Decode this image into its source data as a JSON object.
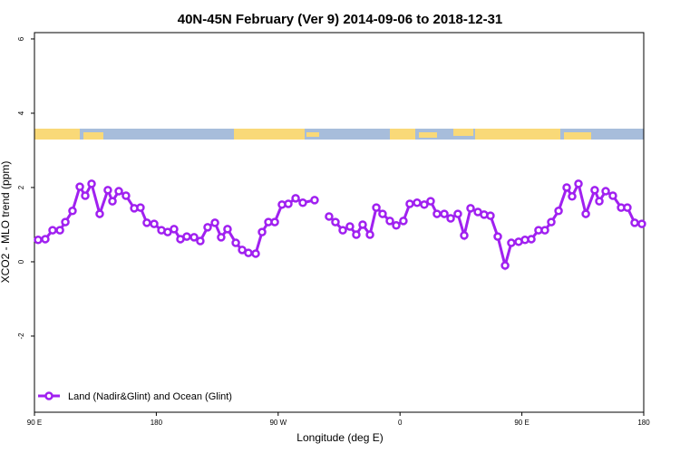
{
  "chart_data": {
    "type": "line",
    "title": "40N-45N February (Ver 9)   2014-09-06 to 2018-12-31",
    "xlabel": "Longitude (deg E)",
    "ylabel": "XCO2 - MLO trend (ppm)",
    "x": [
      92.7,
      98.0,
      103.4,
      108.8,
      112.8,
      118.1,
      123.5,
      127.5,
      132.2,
      138.2,
      144.2,
      147.6,
      152.3,
      157.6,
      163.7,
      168.3,
      173.0,
      178.4,
      183.8,
      188.4,
      193.1,
      197.8,
      202.5,
      207.9,
      212.5,
      217.9,
      223.3,
      227.9,
      232.6,
      238.7,
      243.4,
      248.0,
      253.4,
      258.1,
      262.8,
      267.5,
      272.8,
      277.5,
      282.9,
      288.2,
      296.9,
      302.5,
      307.6,
      312.3,
      317.7,
      323.0,
      327.7,
      332.4,
      337.8,
      342.5,
      347.1,
      352.5,
      357.2,
      362.5,
      367.2,
      372.6,
      377.9,
      382.6,
      387.3,
      392.7,
      397.4,
      402.7,
      407.4,
      412.1,
      417.5,
      422.1,
      426.8,
      432.2,
      437.6,
      442.2,
      447.6,
      452.3,
      457.0,
      462.3,
      467.0,
      471.7,
      477.1,
      483.1,
      487.1,
      491.8,
      497.2,
      503.8,
      507.2,
      511.9,
      517.2,
      523.3,
      527.9,
      533.3,
      538.6
    ],
    "series": [
      {
        "name": "Land (Nadir&Glint) and Ocean (Glint)",
        "color": "#a020f0",
        "values": [
          0.59,
          0.61,
          0.85,
          0.85,
          1.07,
          1.37,
          2.02,
          1.78,
          2.1,
          1.29,
          1.93,
          1.63,
          1.9,
          1.78,
          1.44,
          1.46,
          1.05,
          1.02,
          0.85,
          0.8,
          0.88,
          0.61,
          0.68,
          0.66,
          0.56,
          0.93,
          1.05,
          0.66,
          0.88,
          0.51,
          0.32,
          0.24,
          0.22,
          0.8,
          1.07,
          1.07,
          1.54,
          1.56,
          1.71,
          1.59,
          1.66,
          null,
          1.22,
          1.07,
          0.85,
          0.95,
          0.73,
          1.0,
          0.73,
          1.46,
          1.29,
          1.1,
          0.98,
          1.1,
          1.56,
          1.59,
          1.54,
          1.63,
          1.29,
          1.29,
          1.17,
          1.29,
          0.71,
          1.44,
          1.34,
          1.27,
          1.24,
          0.68,
          -0.1,
          0.51,
          0.54,
          0.59,
          0.61,
          0.85,
          0.85,
          1.07,
          1.37,
          2.0,
          1.76,
          2.1,
          1.29,
          1.93,
          1.63,
          1.9,
          1.78,
          1.46,
          1.46,
          1.05,
          1.02
        ]
      }
    ],
    "xlim": [
      90,
      540
    ],
    "xticks": [
      {
        "value": 90,
        "label": "90 E"
      },
      180,
      {
        "value": 270,
        "label": "90 W"
      },
      {
        "value": 360,
        "label": "0"
      },
      {
        "value": 450,
        "label": "90 E"
      },
      {
        "value": 540,
        "label": "180"
      }
    ],
    "ylim": [
      -4.05,
      6.17
    ],
    "yticks": [
      -2,
      0,
      2,
      4,
      6
    ],
    "legend": "bottom-left"
  }
}
